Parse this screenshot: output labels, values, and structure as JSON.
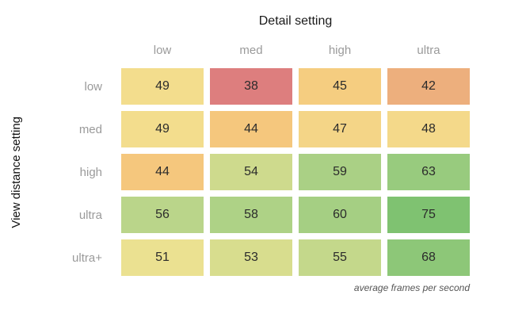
{
  "chart_data": {
    "type": "heatmap",
    "title": "Detail setting",
    "ylabel": "View distance setting",
    "footer_note": "average frames per second",
    "columns": [
      "low",
      "med",
      "high",
      "ultra"
    ],
    "rows": [
      "low",
      "med",
      "high",
      "ultra",
      "ultra+"
    ],
    "values": [
      [
        49,
        38,
        45,
        42
      ],
      [
        49,
        44,
        47,
        48
      ],
      [
        44,
        54,
        59,
        63
      ],
      [
        56,
        58,
        60,
        75
      ],
      [
        51,
        53,
        55,
        68
      ]
    ],
    "value_range": [
      38,
      75
    ],
    "colors": {
      "scale_stops": [
        "#dd7e7e",
        "#f6c97d",
        "#f2e392",
        "#b5d489",
        "#99cb7e",
        "#8bc677",
        "#7fc271"
      ],
      "cell_text": "#2b2b2b",
      "axis_label_gray": "#9a9a9a",
      "background": "#ffffff"
    },
    "legend": "none",
    "grid_lines": "off"
  }
}
